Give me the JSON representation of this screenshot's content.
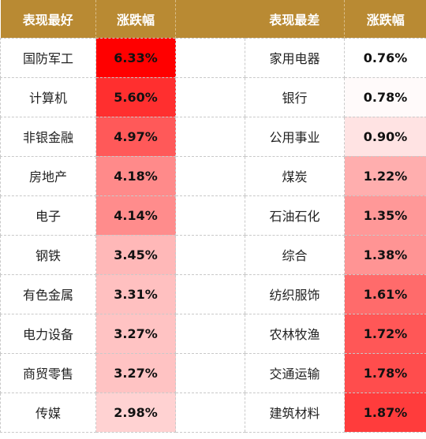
{
  "header": {
    "best_label": "表现最好",
    "best_change": "涨跌幅",
    "worst_label": "表现最差",
    "worst_change": "涨跌幅"
  },
  "best": [
    {
      "name": "国防军工",
      "change": "6.33%",
      "color": "#ff0000"
    },
    {
      "name": "计算机",
      "change": "5.60%",
      "color": "#ff2f2f"
    },
    {
      "name": "非银金融",
      "change": "4.97%",
      "color": "#ff5959"
    },
    {
      "name": "房地产",
      "change": "4.18%",
      "color": "#ff8a8a"
    },
    {
      "name": "电子",
      "change": "4.14%",
      "color": "#ff8c8c"
    },
    {
      "name": "钢铁",
      "change": "3.45%",
      "color": "#ffb8b8"
    },
    {
      "name": "有色金属",
      "change": "3.31%",
      "color": "#ffc0c0"
    },
    {
      "name": "电力设备",
      "change": "3.27%",
      "color": "#ffc3c3"
    },
    {
      "name": "商贸零售",
      "change": "3.27%",
      "color": "#ffc3c3"
    },
    {
      "name": "传媒",
      "change": "2.98%",
      "color": "#ffd2d2"
    }
  ],
  "worst": [
    {
      "name": "家用电器",
      "change": "0.76%",
      "color": "#ffffff"
    },
    {
      "name": "银行",
      "change": "0.78%",
      "color": "#fffafa"
    },
    {
      "name": "公用事业",
      "change": "0.90%",
      "color": "#ffe3e3"
    },
    {
      "name": "煤炭",
      "change": "1.22%",
      "color": "#ffaeae"
    },
    {
      "name": "石油石化",
      "change": "1.35%",
      "color": "#ff9898"
    },
    {
      "name": "综合",
      "change": "1.38%",
      "color": "#ff9494"
    },
    {
      "name": "纺织服饰",
      "change": "1.61%",
      "color": "#ff6b6b"
    },
    {
      "name": "农林牧渔",
      "change": "1.72%",
      "color": "#ff5757"
    },
    {
      "name": "交通运输",
      "change": "1.78%",
      "color": "#ff4d4d"
    },
    {
      "name": "建筑材料",
      "change": "1.87%",
      "color": "#ff3c3c"
    }
  ]
}
